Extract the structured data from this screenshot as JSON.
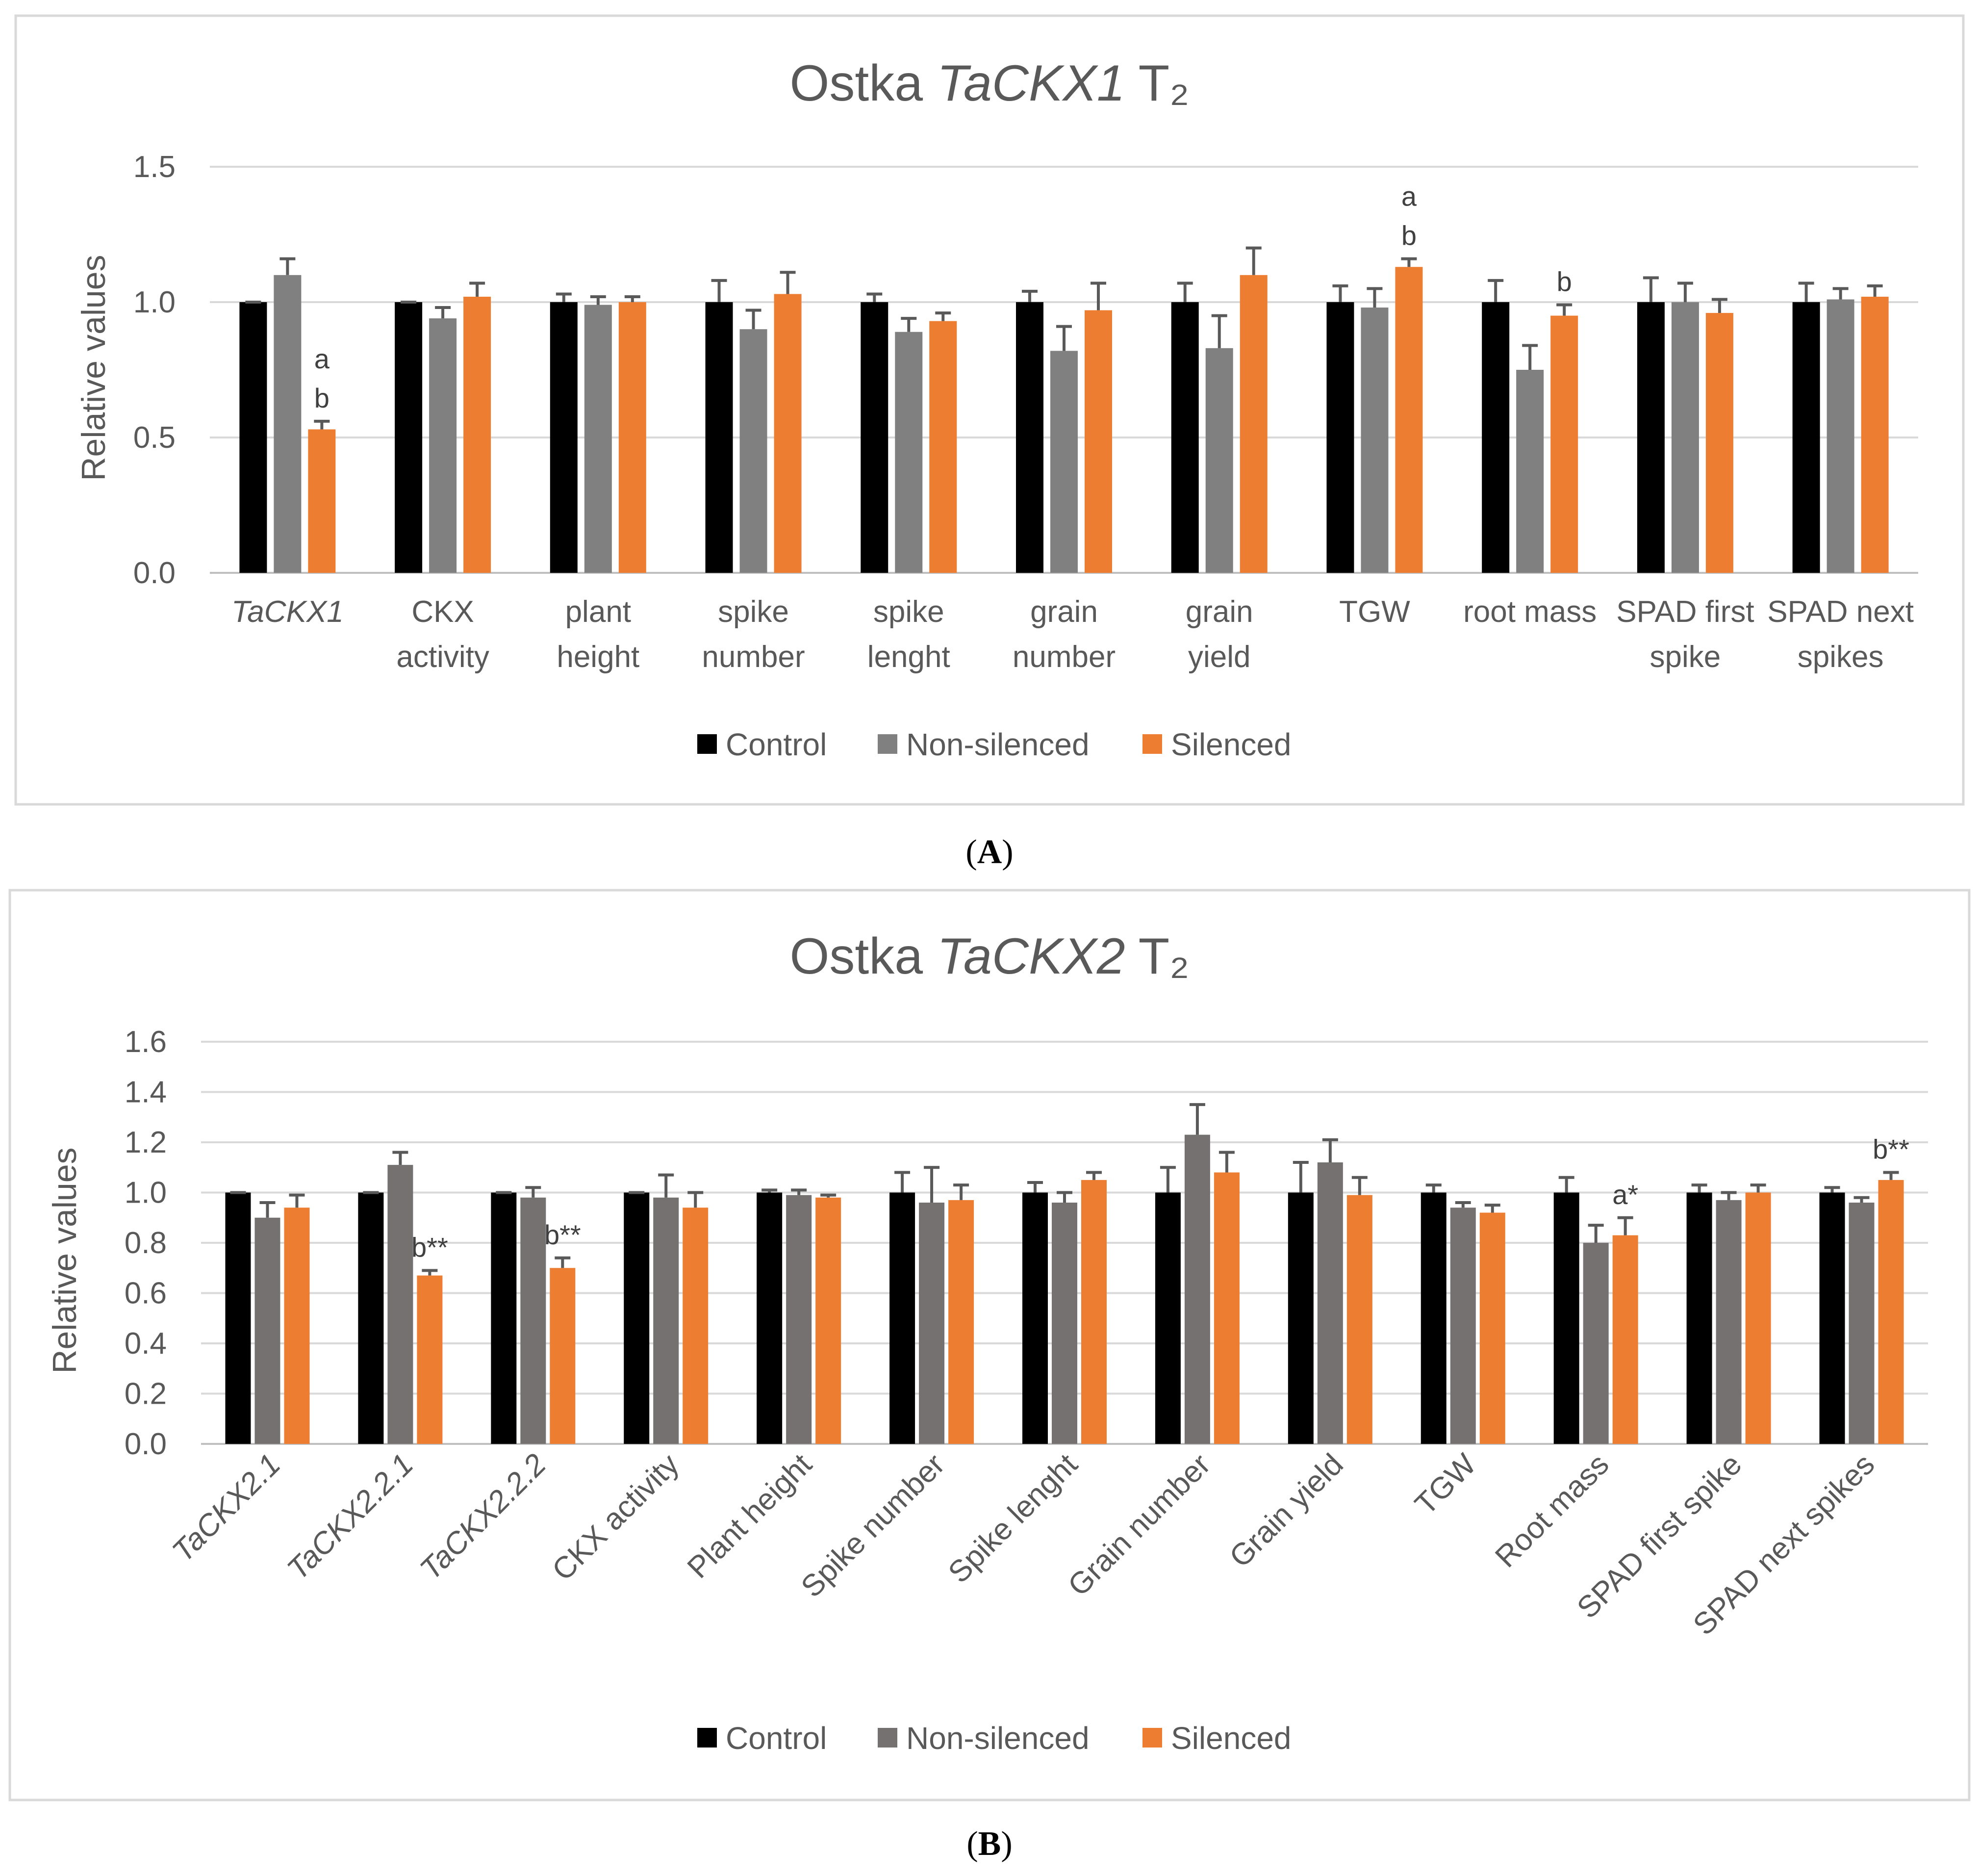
{
  "colors": {
    "control": "#000000",
    "non_silenced_a": "#808080",
    "non_silenced_b": "#767171",
    "silenced": "#ed7d31",
    "error_bar": "#595959"
  },
  "chart_data": [
    {
      "type": "bar",
      "panel_label": "(A)",
      "title_parts": [
        {
          "text": "Ostka ",
          "italic": false
        },
        {
          "text": "TaCKX1",
          "italic": true
        },
        {
          "text": " T₂",
          "italic": false
        }
      ],
      "ylabel": "Relative values",
      "xlabel": "",
      "ylim": [
        0,
        1.5
      ],
      "yticks": [
        "0.0",
        "0.5",
        "1.0",
        "1.5"
      ],
      "grid": true,
      "legend": [
        "Control",
        "Non-silenced",
        "Silenced"
      ],
      "legend_position": "bottom",
      "categories": [
        {
          "lines": [
            "TaCKX1"
          ],
          "italic": true
        },
        {
          "lines": [
            "CKX",
            "activity"
          ],
          "italic": false
        },
        {
          "lines": [
            "plant",
            "height"
          ],
          "italic": false
        },
        {
          "lines": [
            "spike",
            "number"
          ],
          "italic": false
        },
        {
          "lines": [
            "spike",
            "lenght"
          ],
          "italic": false
        },
        {
          "lines": [
            "grain",
            "number"
          ],
          "italic": false
        },
        {
          "lines": [
            "grain",
            "yield"
          ],
          "italic": false
        },
        {
          "lines": [
            "TGW"
          ],
          "italic": false
        },
        {
          "lines": [
            "root mass"
          ],
          "italic": false
        },
        {
          "lines": [
            "SPAD first",
            "spike"
          ],
          "italic": false
        },
        {
          "lines": [
            "SPAD next",
            "spikes"
          ],
          "italic": false
        }
      ],
      "series": [
        {
          "name": "Control",
          "values": [
            1.0,
            1.0,
            1.0,
            1.0,
            1.0,
            1.0,
            1.0,
            1.0,
            1.0,
            1.0,
            1.0
          ],
          "errors": [
            0.0,
            0.0,
            0.03,
            0.08,
            0.03,
            0.04,
            0.07,
            0.06,
            0.08,
            0.09,
            0.07
          ]
        },
        {
          "name": "Non-silenced",
          "values": [
            1.1,
            0.94,
            0.99,
            0.9,
            0.89,
            0.82,
            0.83,
            0.98,
            0.75,
            1.0,
            1.01
          ],
          "errors": [
            0.06,
            0.04,
            0.03,
            0.07,
            0.05,
            0.09,
            0.12,
            0.07,
            0.09,
            0.07,
            0.04
          ]
        },
        {
          "name": "Silenced",
          "values": [
            0.53,
            1.02,
            1.0,
            1.03,
            0.93,
            0.97,
            1.1,
            1.13,
            0.95,
            0.96,
            1.02
          ],
          "errors": [
            0.03,
            0.05,
            0.02,
            0.08,
            0.03,
            0.1,
            0.1,
            0.03,
            0.04,
            0.05,
            0.04
          ]
        }
      ],
      "annotations": [
        {
          "category_index": 0,
          "series": "Silenced",
          "lines": [
            "a",
            "b"
          ]
        },
        {
          "category_index": 7,
          "series": "Silenced",
          "lines": [
            "a",
            "b"
          ]
        },
        {
          "category_index": 8,
          "series": "Silenced",
          "lines": [
            "b"
          ]
        }
      ]
    },
    {
      "type": "bar",
      "panel_label": "(B)",
      "title_parts": [
        {
          "text": "Ostka ",
          "italic": false
        },
        {
          "text": "TaCKX2",
          "italic": true
        },
        {
          "text": " T₂",
          "italic": false
        }
      ],
      "ylabel": "Relative values",
      "xlabel": "",
      "ylim": [
        0,
        1.6
      ],
      "yticks": [
        "0.0",
        "0.2",
        "0.4",
        "0.6",
        "0.8",
        "1.0",
        "1.2",
        "1.4",
        "1.6"
      ],
      "grid": true,
      "legend": [
        "Control",
        "Non-silenced",
        "Silenced"
      ],
      "legend_position": "bottom",
      "categories": [
        {
          "lines": [
            "TaCKX2.1"
          ],
          "italic": true
        },
        {
          "lines": [
            "TaCKX2.2.1"
          ],
          "italic": true
        },
        {
          "lines": [
            "TaCKX2.2.2"
          ],
          "italic": true
        },
        {
          "lines": [
            "CKX activity"
          ],
          "italic": false
        },
        {
          "lines": [
            "Plant height"
          ],
          "italic": false
        },
        {
          "lines": [
            "Spike number"
          ],
          "italic": false
        },
        {
          "lines": [
            "Spike lenght"
          ],
          "italic": false
        },
        {
          "lines": [
            "Grain number"
          ],
          "italic": false
        },
        {
          "lines": [
            "Grain yield"
          ],
          "italic": false
        },
        {
          "lines": [
            "TGW"
          ],
          "italic": false
        },
        {
          "lines": [
            "Root mass"
          ],
          "italic": false
        },
        {
          "lines": [
            "SPAD first spike"
          ],
          "italic": false
        },
        {
          "lines": [
            "SPAD next spikes"
          ],
          "italic": false
        }
      ],
      "series": [
        {
          "name": "Control",
          "values": [
            1.0,
            1.0,
            1.0,
            1.0,
            1.0,
            1.0,
            1.0,
            1.0,
            1.0,
            1.0,
            1.0,
            1.0,
            1.0
          ],
          "errors": [
            0.0,
            0.0,
            0.0,
            0.0,
            0.01,
            0.08,
            0.04,
            0.1,
            0.12,
            0.03,
            0.06,
            0.03,
            0.02
          ]
        },
        {
          "name": "Non-silenced",
          "values": [
            0.9,
            1.11,
            0.98,
            0.98,
            0.99,
            0.96,
            0.96,
            1.23,
            1.12,
            0.94,
            0.8,
            0.97,
            0.96
          ],
          "errors": [
            0.06,
            0.05,
            0.04,
            0.09,
            0.02,
            0.14,
            0.04,
            0.12,
            0.09,
            0.02,
            0.07,
            0.03,
            0.02
          ]
        },
        {
          "name": "Silenced",
          "values": [
            0.94,
            0.67,
            0.7,
            0.94,
            0.98,
            0.97,
            1.05,
            1.08,
            0.99,
            0.92,
            0.83,
            1.0,
            1.05
          ],
          "errors": [
            0.05,
            0.02,
            0.04,
            0.06,
            0.01,
            0.06,
            0.03,
            0.08,
            0.07,
            0.03,
            0.07,
            0.03,
            0.03
          ]
        }
      ],
      "annotations": [
        {
          "category_index": 1,
          "series": "Silenced",
          "lines": [
            "b**"
          ]
        },
        {
          "category_index": 2,
          "series": "Silenced",
          "lines": [
            "b**"
          ]
        },
        {
          "category_index": 10,
          "series": "Silenced",
          "lines": [
            "a*"
          ]
        },
        {
          "category_index": 12,
          "series": "Silenced",
          "lines": [
            "b**"
          ]
        }
      ]
    }
  ]
}
